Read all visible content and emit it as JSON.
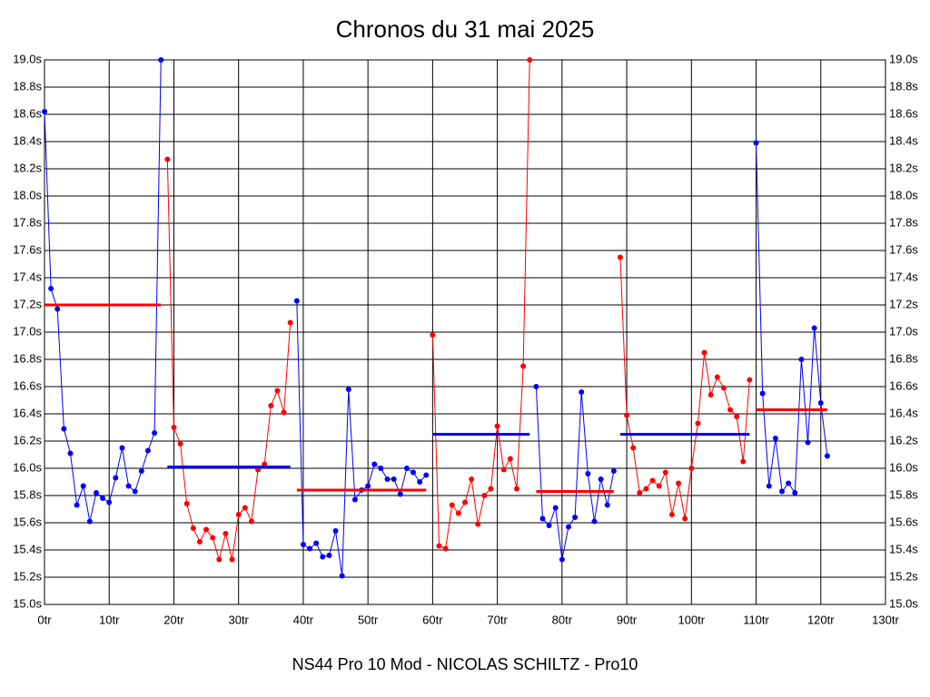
{
  "chart_data": {
    "type": "line",
    "title": "Chronos du 31 mai 2025",
    "xlabel": "NS44 Pro 10 Mod - NICOLAS SCHILTZ - Pro10",
    "grid": true,
    "xlim": [
      0,
      130
    ],
    "ylim": [
      15.0,
      19.0
    ],
    "xticks": [
      {
        "value": 0,
        "label": "0tr"
      },
      {
        "value": 10,
        "label": "10tr"
      },
      {
        "value": 20,
        "label": "20tr"
      },
      {
        "value": 30,
        "label": "30tr"
      },
      {
        "value": 40,
        "label": "40tr"
      },
      {
        "value": 50,
        "label": "50tr"
      },
      {
        "value": 60,
        "label": "60tr"
      },
      {
        "value": 70,
        "label": "70tr"
      },
      {
        "value": 80,
        "label": "80tr"
      },
      {
        "value": 90,
        "label": "90tr"
      },
      {
        "value": 100,
        "label": "100tr"
      },
      {
        "value": 110,
        "label": "110tr"
      },
      {
        "value": 120,
        "label": "120tr"
      },
      {
        "value": 130,
        "label": "130tr"
      }
    ],
    "yticks": [
      {
        "value": 15.0,
        "label": "15.0s"
      },
      {
        "value": 15.2,
        "label": "15.2s"
      },
      {
        "value": 15.4,
        "label": "15.4s"
      },
      {
        "value": 15.6,
        "label": "15.6s"
      },
      {
        "value": 15.8,
        "label": "15.8s"
      },
      {
        "value": 16.0,
        "label": "16.0s"
      },
      {
        "value": 16.2,
        "label": "16.2s"
      },
      {
        "value": 16.4,
        "label": "16.4s"
      },
      {
        "value": 16.6,
        "label": "16.6s"
      },
      {
        "value": 16.8,
        "label": "16.8s"
      },
      {
        "value": 17.0,
        "label": "17.0s"
      },
      {
        "value": 17.2,
        "label": "17.2s"
      },
      {
        "value": 17.4,
        "label": "17.4s"
      },
      {
        "value": 17.6,
        "label": "17.6s"
      },
      {
        "value": 17.8,
        "label": "17.8s"
      },
      {
        "value": 18.0,
        "label": "18.0s"
      },
      {
        "value": 18.2,
        "label": "18.2s"
      },
      {
        "value": 18.4,
        "label": "18.4s"
      },
      {
        "value": 18.6,
        "label": "18.6s"
      },
      {
        "value": 18.8,
        "label": "18.8s"
      },
      {
        "value": 19.0,
        "label": "19.0s"
      }
    ],
    "series": [
      {
        "color": "#0000ff",
        "x": [
          0,
          1,
          2,
          3,
          4,
          5,
          6,
          7,
          8,
          9,
          10,
          11,
          12,
          13,
          14,
          15,
          16,
          17,
          18
        ],
        "values": [
          18.62,
          17.32,
          17.17,
          16.29,
          16.11,
          15.73,
          15.87,
          15.61,
          15.82,
          15.78,
          15.75,
          15.93,
          16.15,
          15.87,
          15.83,
          15.98,
          16.13,
          16.26,
          19.0
        ]
      },
      {
        "color": "#ff0000",
        "x": [
          19,
          20,
          21,
          22,
          23,
          24,
          25,
          26,
          27,
          28,
          29,
          30,
          31,
          32,
          33,
          34,
          35,
          36,
          37,
          38
        ],
        "values": [
          18.27,
          16.3,
          16.18,
          15.74,
          15.56,
          15.46,
          15.55,
          15.49,
          15.33,
          15.52,
          15.33,
          15.66,
          15.71,
          15.61,
          15.99,
          16.03,
          16.46,
          16.57,
          16.41,
          17.07
        ]
      },
      {
        "color": "#0000ff",
        "x": [
          39,
          40,
          41,
          42,
          43,
          44,
          45,
          46,
          47,
          48,
          49,
          50,
          51,
          52,
          53,
          54,
          55,
          56,
          57,
          58,
          59
        ],
        "values": [
          17.23,
          15.44,
          15.41,
          15.45,
          15.35,
          15.36,
          15.54,
          15.21,
          16.58,
          15.77,
          15.84,
          15.87,
          16.03,
          16.0,
          15.92,
          15.92,
          15.81,
          16.0,
          15.97,
          15.9,
          15.95
        ]
      },
      {
        "color": "#ff0000",
        "x": [
          60,
          61,
          62,
          63,
          64,
          65,
          66,
          67,
          68,
          69,
          70,
          71,
          72,
          73,
          74,
          75
        ],
        "values": [
          16.98,
          15.43,
          15.41,
          15.73,
          15.67,
          15.75,
          15.92,
          15.59,
          15.8,
          15.85,
          16.31,
          15.99,
          16.07,
          15.85,
          16.75,
          19.0
        ]
      },
      {
        "color": "#0000ff",
        "x": [
          76,
          77,
          78,
          79,
          80,
          81,
          82,
          83,
          84,
          85,
          86,
          87,
          88
        ],
        "values": [
          16.6,
          15.63,
          15.58,
          15.71,
          15.33,
          15.57,
          15.64,
          16.56,
          15.96,
          15.61,
          15.92,
          15.73,
          15.98
        ]
      },
      {
        "color": "#ff0000",
        "x": [
          89,
          90,
          91,
          92,
          93,
          94,
          95,
          96,
          97,
          98,
          99,
          100,
          101,
          102,
          103,
          104,
          105,
          106,
          107,
          108,
          109
        ],
        "values": [
          17.55,
          16.39,
          16.15,
          15.82,
          15.85,
          15.91,
          15.87,
          15.97,
          15.66,
          15.89,
          15.63,
          16.0,
          16.33,
          16.85,
          16.54,
          16.67,
          16.59,
          16.43,
          16.38,
          16.05,
          16.65
        ]
      },
      {
        "color": "#0000ff",
        "x": [
          110,
          111,
          112,
          113,
          114,
          115,
          116,
          117,
          118,
          119,
          120,
          121
        ],
        "values": [
          18.39,
          16.55,
          15.87,
          16.22,
          15.83,
          15.89,
          15.82,
          16.8,
          16.19,
          17.03,
          16.48,
          16.09
        ]
      }
    ],
    "averages": [
      {
        "color": "#ff0000",
        "x": [
          0,
          18
        ],
        "value": 17.2
      },
      {
        "color": "#0000ff",
        "x": [
          19,
          38
        ],
        "value": 16.01
      },
      {
        "color": "#ff0000",
        "x": [
          39,
          59
        ],
        "value": 15.84
      },
      {
        "color": "#0000ff",
        "x": [
          60,
          75
        ],
        "value": 16.25
      },
      {
        "color": "#ff0000",
        "x": [
          76,
          88
        ],
        "value": 15.83
      },
      {
        "color": "#0000ff",
        "x": [
          89,
          109
        ],
        "value": 16.25
      },
      {
        "color": "#ff0000",
        "x": [
          110,
          121
        ],
        "value": 16.43
      }
    ]
  }
}
